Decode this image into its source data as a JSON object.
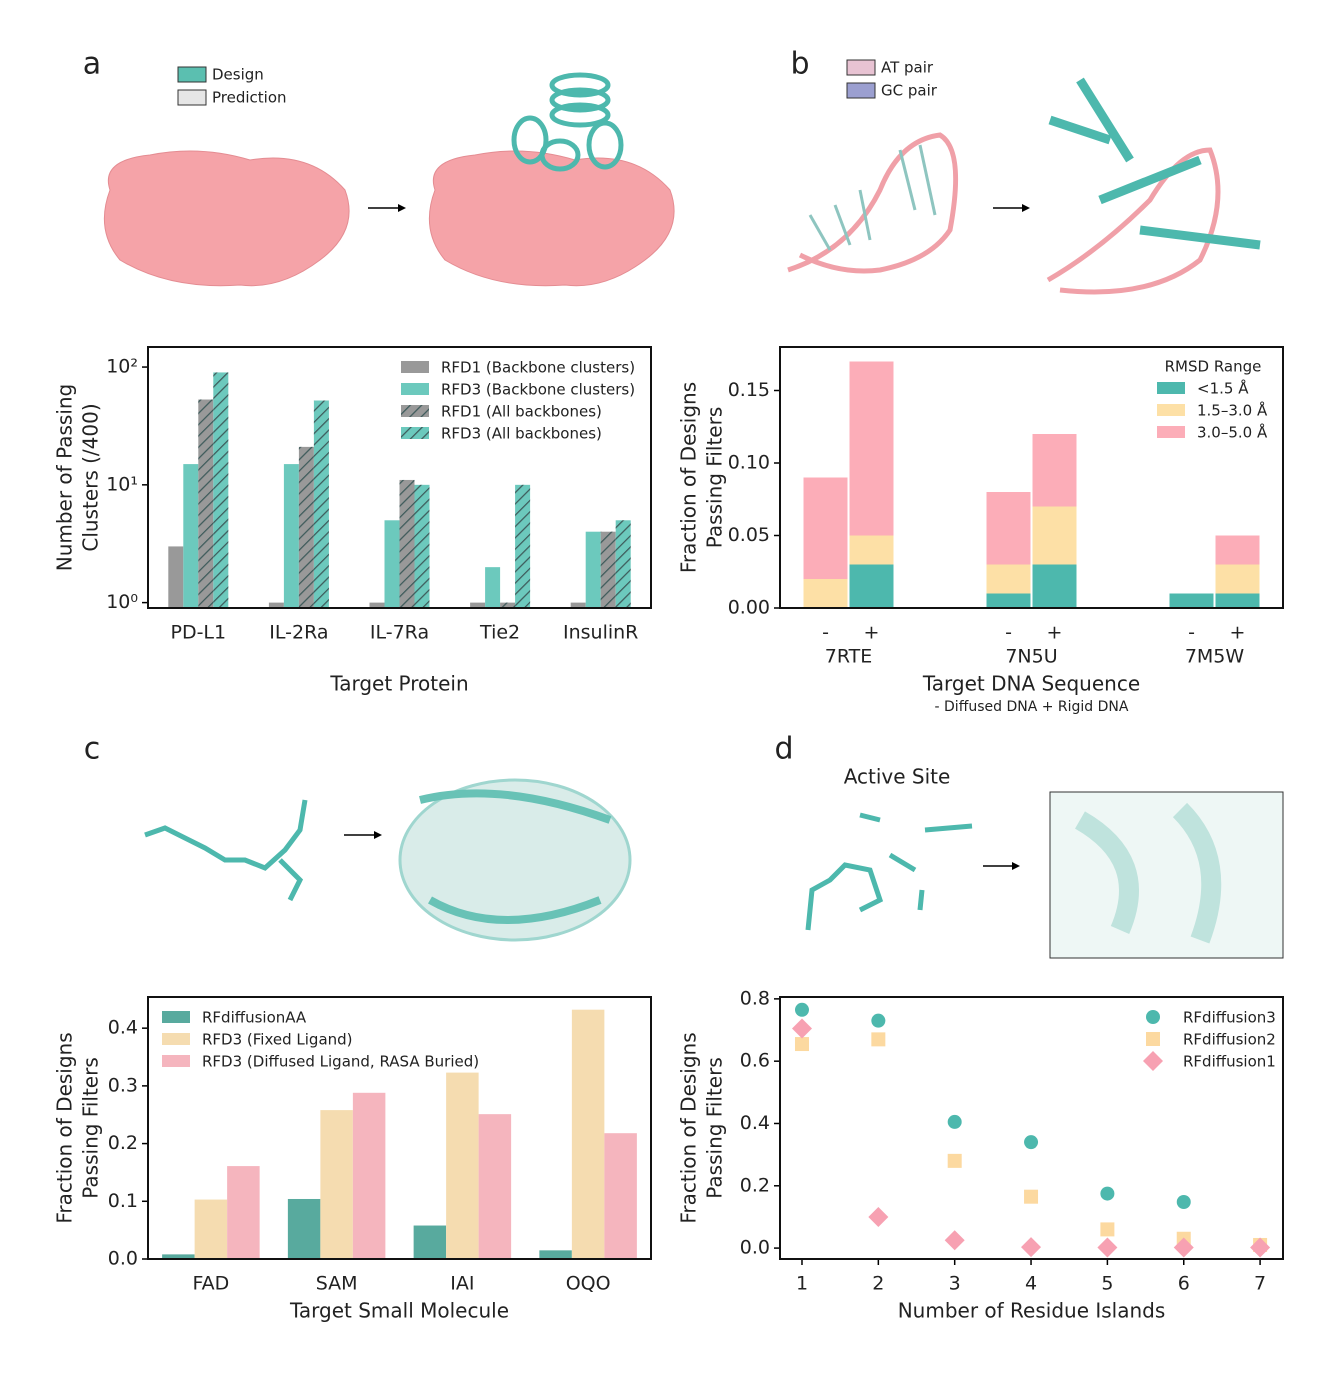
{
  "chart_data": [
    {
      "type": "bar",
      "panel_label": "a",
      "illustration_legend": [
        {
          "name": "Design",
          "color": "#5bbfb0"
        },
        {
          "name": "Prediction",
          "color": "#e6e6e6"
        }
      ],
      "ylabel": [
        "Number of Passing",
        "Clusters (/400)"
      ],
      "xlabel": "Target Protein",
      "categories": [
        "PD-L1",
        "IL-2Ra",
        "IL-7Ra",
        "Tie2",
        "InsulinR"
      ],
      "series": [
        {
          "name": "RFD1 (Backbone clusters)",
          "color": "#999999",
          "hatch": false,
          "values": [
            3,
            1,
            1,
            1,
            1
          ]
        },
        {
          "name": "RFD3 (Backbone clusters)",
          "color": "#6cc9bd",
          "hatch": false,
          "values": [
            15,
            15,
            5,
            2,
            4
          ]
        },
        {
          "name": "RFD1 (All backbones)",
          "color": "#999999",
          "hatch": true,
          "values": [
            53,
            21,
            11,
            1,
            4
          ]
        },
        {
          "name": "RFD3 (All backbones)",
          "color": "#6cc9bd",
          "hatch": true,
          "values": [
            90,
            52,
            10,
            10,
            5
          ]
        }
      ],
      "ylog": true,
      "ylim": [
        0.9,
        148
      ],
      "yticks": [
        {
          "value": 1,
          "label": "10⁰"
        },
        {
          "value": 10,
          "label": "10¹"
        },
        {
          "value": 100,
          "label": "10²"
        }
      ],
      "legend": "upper right"
    },
    {
      "type": "stacked_bar",
      "panel_label": "b",
      "illustration_legend": [
        {
          "name": "AT pair",
          "color": "#e8c3d3"
        },
        {
          "name": "GC pair",
          "color": "#9b9fd0"
        }
      ],
      "ylabel": [
        "Fraction of Designs",
        "Passing Filters"
      ],
      "xlabel": "Target DNA Sequence",
      "subtitle": "- Diffused DNA + Rigid DNA",
      "categories": [
        "-",
        "+",
        "-",
        "+",
        "-",
        "+"
      ],
      "groups": [
        "7RTE",
        "7N5U",
        "7M5W"
      ],
      "legend_title": "RMSD Range",
      "series": [
        {
          "name": "<1.5 Å",
          "color": "#4db8ad",
          "values": [
            0,
            0.03,
            0.01,
            0.03,
            0.01,
            0.01
          ]
        },
        {
          "name": "1.5–3.0 Å",
          "color": "#fde0a6",
          "values": [
            0.02,
            0.02,
            0.02,
            0.04,
            0,
            0.02
          ]
        },
        {
          "name": "3.0–5.0 Å",
          "color": "#fcadb8",
          "values": [
            0.07,
            0.12,
            0.05,
            0.05,
            0,
            0.02
          ]
        }
      ],
      "ylim": [
        0,
        0.18
      ],
      "yticks": [
        {
          "value": 0,
          "label": "0.00"
        },
        0.05,
        {
          "value": 0.1,
          "label": "0.10"
        },
        0.15
      ],
      "legend": "upper right"
    },
    {
      "type": "bar",
      "panel_label": "c",
      "ylabel": [
        "Fraction of Designs",
        "Passing Filters"
      ],
      "xlabel": "Target Small Molecule",
      "categories": [
        "FAD",
        "SAM",
        "IAI",
        "OQO"
      ],
      "series": [
        {
          "name": "RFdiffusionAA",
          "color": "#58aa9e",
          "values": [
            0.008,
            0.104,
            0.058,
            0.015
          ]
        },
        {
          "name": "RFD3 (Fixed Ligand)",
          "color": "#f5dcb0",
          "values": [
            0.103,
            0.258,
            0.323,
            0.432
          ]
        },
        {
          "name": "RFD3 (Diffused Ligand, RASA Buried)",
          "color": "#f5b5be",
          "values": [
            0.161,
            0.288,
            0.251,
            0.218
          ]
        }
      ],
      "ylim": [
        0,
        0.454
      ],
      "yticks": [
        {
          "value": 0,
          "label": "0.0"
        },
        0.1,
        0.2,
        0.3,
        0.4
      ],
      "legend": "upper left"
    },
    {
      "type": "scatter",
      "panel_label": "d",
      "illustration_title": "Active Site",
      "ylabel": [
        "Fraction of Designs",
        "Passing Filters"
      ],
      "xlabel": "Number of Residue Islands",
      "x": [
        1,
        2,
        3,
        4,
        5,
        6,
        7
      ],
      "series": [
        {
          "name": "RFdiffusion3",
          "color": "#4db8ad",
          "marker": "circle",
          "values": [
            0.765,
            0.73,
            0.405,
            0.34,
            0.175,
            0.148,
            null
          ]
        },
        {
          "name": "RFdiffusion2",
          "color": "#fcd9a0",
          "marker": "square",
          "values": [
            0.655,
            0.67,
            0.28,
            0.165,
            0.06,
            0.03,
            0.01
          ]
        },
        {
          "name": "RFdiffusion1",
          "color": "#f7a1b2",
          "marker": "diamond",
          "values": [
            0.705,
            0.1,
            0.025,
            0.003,
            0.002,
            0.002,
            0.002
          ]
        }
      ],
      "xlim": [
        0.712,
        7.3
      ],
      "xticks": [
        1,
        2,
        3,
        4,
        5,
        6,
        7
      ],
      "ylim": [
        -0.035,
        0.806
      ],
      "yticks": [
        {
          "value": 0,
          "label": "0.0"
        },
        0.2,
        0.4,
        0.6,
        0.8
      ],
      "legend": "upper right"
    }
  ]
}
